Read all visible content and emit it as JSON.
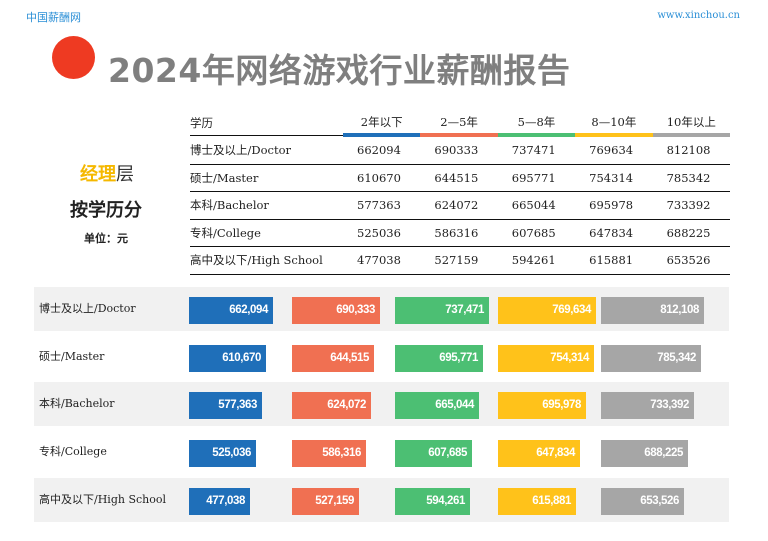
{
  "header": {
    "brand_cn": "中国薪酬网",
    "brand_url": "www.xinchou.cn",
    "title": "2024年网络游戏行业薪酬报告"
  },
  "panel": {
    "level_highlight": "经理",
    "level_rest": "层",
    "subtitle": "按学历分",
    "unit": "单位：元"
  },
  "colors": {
    "col0": "#1f6fb9",
    "col1": "#f07052",
    "col2": "#4cbf73",
    "col3": "#ffc21a",
    "col4": "#a6a6a6",
    "dot": "#ee3a22"
  },
  "table": {
    "headers": [
      "学历",
      "2年以下",
      "2—5年",
      "5—8年",
      "8—10年",
      "10年以上"
    ],
    "rows": [
      {
        "label": "博士及以上/Doctor",
        "values": [
          "662094",
          "690333",
          "737471",
          "769634",
          "812108"
        ]
      },
      {
        "label": "硕士/Master",
        "values": [
          "610670",
          "644515",
          "695771",
          "754314",
          "785342"
        ]
      },
      {
        "label": "本科/Bachelor",
        "values": [
          "577363",
          "624072",
          "665044",
          "695978",
          "733392"
        ]
      },
      {
        "label": "专科/College",
        "values": [
          "525036",
          "586316",
          "607685",
          "647834",
          "688225"
        ]
      },
      {
        "label": "高中及以下/High School",
        "values": [
          "477038",
          "527159",
          "594261",
          "615881",
          "653526"
        ]
      }
    ]
  },
  "bars": {
    "rows": [
      {
        "label": "博士及以上/Doctor",
        "values": [
          662094,
          690333,
          737471,
          769634,
          812108
        ],
        "labels": [
          "662,094",
          "690,333",
          "737,471",
          "769,634",
          "812,108"
        ]
      },
      {
        "label": "硕士/Master",
        "values": [
          610670,
          644515,
          695771,
          754314,
          785342
        ],
        "labels": [
          "610,670",
          "644,515",
          "695,771",
          "754,314",
          "785,342"
        ]
      },
      {
        "label": "本科/Bachelor",
        "values": [
          577363,
          624072,
          665044,
          695978,
          733392
        ],
        "labels": [
          "577,363",
          "624,072",
          "665,044",
          "695,978",
          "733,392"
        ]
      },
      {
        "label": "专科/College",
        "values": [
          525036,
          586316,
          607685,
          647834,
          688225
        ],
        "labels": [
          "525,036",
          "586,316",
          "607,685",
          "647,834",
          "688,225"
        ]
      },
      {
        "label": "高中及以下/High School",
        "values": [
          477038,
          527159,
          594261,
          615881,
          653526
        ],
        "labels": [
          "477,038",
          "527,159",
          "594,261",
          "615,881",
          "653,526"
        ]
      }
    ]
  }
}
